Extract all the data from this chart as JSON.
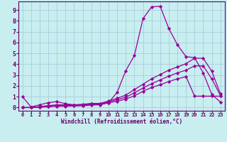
{
  "xlabel": "Windchill (Refroidissement éolien,°C)",
  "bg_color": "#c8eef0",
  "line_color": "#990099",
  "grid_color": "#a0c8d8",
  "xlim": [
    -0.5,
    23.5
  ],
  "ylim": [
    -0.3,
    9.8
  ],
  "xticks": [
    0,
    1,
    2,
    3,
    4,
    5,
    6,
    7,
    8,
    9,
    10,
    11,
    12,
    13,
    14,
    15,
    16,
    17,
    18,
    19,
    20,
    21,
    22,
    23
  ],
  "yticks": [
    0,
    1,
    2,
    3,
    4,
    5,
    6,
    7,
    8,
    9
  ],
  "curve1_x": [
    0,
    1,
    2,
    3,
    4,
    5,
    6,
    7,
    8,
    9,
    10,
    11,
    12,
    13,
    14,
    15,
    16,
    17,
    18,
    19,
    20,
    21,
    22,
    23
  ],
  "curve1_y": [
    1.0,
    0.05,
    0.25,
    0.45,
    0.55,
    0.35,
    0.25,
    0.25,
    0.35,
    0.25,
    0.45,
    1.4,
    3.4,
    4.8,
    8.2,
    9.3,
    9.35,
    7.3,
    5.8,
    4.7,
    4.6,
    3.2,
    1.2,
    0.5
  ],
  "curve2_x": [
    0,
    1,
    2,
    3,
    4,
    5,
    6,
    7,
    8,
    9,
    10,
    11,
    12,
    13,
    14,
    15,
    16,
    17,
    18,
    19,
    20,
    21,
    22,
    23
  ],
  "curve2_y": [
    0.0,
    0.0,
    0.08,
    0.18,
    0.25,
    0.25,
    0.25,
    0.3,
    0.38,
    0.38,
    0.6,
    0.85,
    1.15,
    1.65,
    2.15,
    2.65,
    3.05,
    3.45,
    3.75,
    4.05,
    4.55,
    4.55,
    3.35,
    1.25
  ],
  "curve3_x": [
    0,
    1,
    2,
    3,
    4,
    5,
    6,
    7,
    8,
    9,
    10,
    11,
    12,
    13,
    14,
    15,
    16,
    17,
    18,
    19,
    20,
    21,
    22,
    23
  ],
  "curve3_y": [
    0.0,
    0.0,
    0.05,
    0.12,
    0.18,
    0.18,
    0.2,
    0.22,
    0.3,
    0.32,
    0.52,
    0.72,
    0.95,
    1.35,
    1.8,
    2.2,
    2.55,
    2.9,
    3.2,
    3.45,
    3.85,
    3.85,
    2.65,
    1.1
  ],
  "curve4_x": [
    0,
    1,
    2,
    3,
    4,
    5,
    6,
    7,
    8,
    9,
    10,
    11,
    12,
    13,
    14,
    15,
    16,
    17,
    18,
    19,
    20,
    21,
    22,
    23
  ],
  "curve4_y": [
    0.0,
    0.0,
    0.03,
    0.07,
    0.12,
    0.12,
    0.14,
    0.16,
    0.22,
    0.26,
    0.44,
    0.58,
    0.78,
    1.08,
    1.5,
    1.85,
    2.1,
    2.4,
    2.65,
    2.85,
    1.05,
    1.05,
    1.05,
    1.05
  ]
}
